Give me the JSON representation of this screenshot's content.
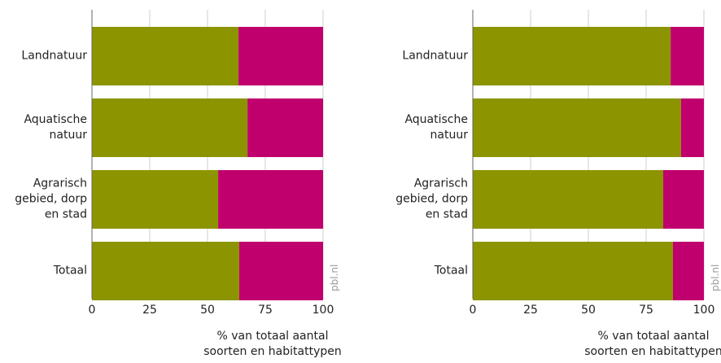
{
  "chart_data": [
    {
      "type": "bar",
      "orientation": "horizontal",
      "stacked": true,
      "categories": [
        "Landnatuur",
        "Aquatische natuur",
        "Agrarisch gebied, dorp en stad",
        "Totaal"
      ],
      "series": [
        {
          "color": "#8c9400",
          "values": [
            63.4,
            67.3,
            54.6,
            63.7
          ]
        },
        {
          "color": "#c0006d",
          "values": [
            36.6,
            32.7,
            45.4,
            36.3
          ]
        }
      ],
      "xlim": [
        0,
        100
      ],
      "xticks": [
        0,
        25,
        50,
        75,
        100
      ],
      "grid": true,
      "xlabel": "% van totaal aantal soorten en habitattypen",
      "annotation": "pbl.nl"
    },
    {
      "type": "bar",
      "orientation": "horizontal",
      "stacked": true,
      "categories": [
        "Landnatuur",
        "Aquatische natuur",
        "Agrarisch gebied, dorp en stad",
        "Totaal"
      ],
      "series": [
        {
          "color": "#8c9400",
          "values": [
            85.6,
            90.1,
            82.4,
            86.6
          ]
        },
        {
          "color": "#c0006d",
          "values": [
            14.4,
            9.9,
            17.6,
            13.4
          ]
        }
      ],
      "xlim": [
        0,
        100
      ],
      "xticks": [
        0,
        25,
        50,
        75,
        100
      ],
      "grid": true,
      "xlabel": "% van totaal aantal soorten en habitattypen",
      "annotation": "pbl.nl"
    }
  ]
}
